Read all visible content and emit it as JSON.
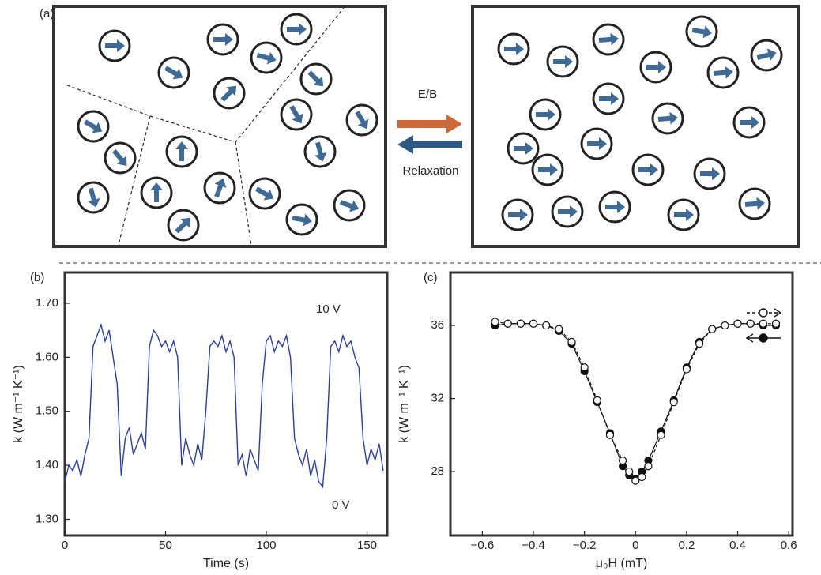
{
  "diagram": {
    "label": "(a)",
    "forward": "E/B",
    "backward": "Relaxation"
  },
  "chart_data": [
    {
      "type": "line",
      "panel": "(b)",
      "xlabel": "Time (s)",
      "ylabel": "k (W m⁻¹ K⁻¹)",
      "color": "#2a3ea0",
      "annotations": [
        "10 V",
        "0 V"
      ],
      "x": [
        0,
        2,
        4,
        6,
        8,
        10,
        12,
        14,
        16,
        18,
        20,
        22,
        24,
        26,
        28,
        30,
        32,
        34,
        36,
        38,
        40,
        42,
        44,
        46,
        48,
        50,
        52,
        54,
        56,
        58,
        60,
        62,
        64,
        66,
        68,
        70,
        72,
        74,
        76,
        78,
        80,
        82,
        84,
        86,
        88,
        90,
        92,
        94,
        96,
        98,
        100,
        102,
        104,
        106,
        108,
        110,
        112,
        114,
        116,
        118,
        120,
        122,
        124,
        126,
        128,
        130,
        132,
        134,
        136,
        138,
        140,
        142,
        144,
        146,
        148,
        150,
        152,
        154,
        156,
        158
      ],
      "values": [
        1.37,
        1.4,
        1.39,
        1.41,
        1.38,
        1.42,
        1.45,
        1.62,
        1.64,
        1.66,
        1.63,
        1.65,
        1.6,
        1.55,
        1.38,
        1.45,
        1.47,
        1.42,
        1.44,
        1.46,
        1.43,
        1.62,
        1.65,
        1.64,
        1.62,
        1.63,
        1.61,
        1.63,
        1.6,
        1.4,
        1.45,
        1.42,
        1.4,
        1.44,
        1.41,
        1.5,
        1.62,
        1.63,
        1.62,
        1.64,
        1.61,
        1.63,
        1.6,
        1.4,
        1.42,
        1.38,
        1.43,
        1.41,
        1.39,
        1.55,
        1.63,
        1.64,
        1.61,
        1.63,
        1.62,
        1.64,
        1.6,
        1.45,
        1.42,
        1.4,
        1.43,
        1.38,
        1.41,
        1.37,
        1.36,
        1.45,
        1.62,
        1.63,
        1.61,
        1.64,
        1.62,
        1.63,
        1.6,
        1.58,
        1.45,
        1.4,
        1.43,
        1.41,
        1.44,
        1.39
      ],
      "xlim": [
        0,
        160
      ],
      "xticks": [
        0,
        50,
        100,
        150
      ],
      "ylim": [
        1.27,
        1.757
      ],
      "yticks": [
        {
          "value": 1.3,
          "label": "1.30"
        },
        {
          "value": 1.4,
          "label": "1.40"
        },
        {
          "value": 1.5,
          "label": "1.50"
        },
        {
          "value": 1.6,
          "label": "1.60"
        },
        {
          "value": 1.7,
          "label": "1.70"
        }
      ]
    },
    {
      "type": "scatter",
      "panel": "(c)",
      "xlabel": "μ₀H (mT)",
      "ylabel": "k (W m⁻¹ K⁻¹)",
      "x": [
        -0.55,
        -0.5,
        -0.45,
        -0.4,
        -0.35,
        -0.3,
        -0.25,
        -0.2,
        -0.15,
        -0.1,
        -0.05,
        -0.025,
        0,
        0.025,
        0.05,
        0.1,
        0.15,
        0.2,
        0.25,
        0.3,
        0.35,
        0.4,
        0.45,
        0.5,
        0.55
      ],
      "series": [
        {
          "color": "#111111",
          "marker": "filled",
          "linestyle": "solid",
          "values": [
            36.0,
            36.1,
            36.1,
            36.1,
            36.0,
            35.7,
            35.0,
            33.5,
            31.8,
            30.1,
            28.3,
            27.8,
            27.6,
            28.0,
            28.6,
            30.2,
            31.9,
            33.7,
            35.1,
            35.8,
            36.0,
            36.1,
            36.1,
            36.0,
            36.0
          ]
        },
        {
          "color": "#111111",
          "marker": "open",
          "linestyle": "dashed",
          "values": [
            36.2,
            36.1,
            36.1,
            36.1,
            36.0,
            35.8,
            35.1,
            33.7,
            31.9,
            30.0,
            28.6,
            28.0,
            27.5,
            27.7,
            28.3,
            30.0,
            31.8,
            33.6,
            35.0,
            35.8,
            36.0,
            36.1,
            36.1,
            36.1,
            36.1
          ]
        }
      ],
      "xlim": [
        -0.725,
        0.615
      ],
      "xticks": [
        {
          "value": -0.6,
          "label": "−0.6"
        },
        {
          "value": -0.4,
          "label": "−0.4"
        },
        {
          "value": -0.2,
          "label": "−0.2"
        },
        0,
        0.2,
        0.4,
        0.6
      ],
      "ylim": [
        24.5,
        38.9
      ],
      "yticks": [
        28,
        32,
        36
      ]
    }
  ]
}
